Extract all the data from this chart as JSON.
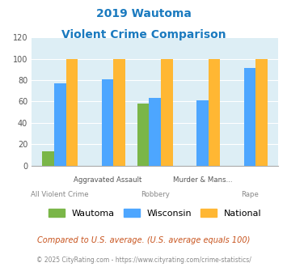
{
  "title_line1": "2019 Wautoma",
  "title_line2": "Violent Crime Comparison",
  "title_color": "#1a7abf",
  "categories": [
    "All Violent Crime",
    "Aggravated Assault",
    "Robbery",
    "Murder & Mans...",
    "Rape"
  ],
  "row1_labels": [
    "Aggravated Assault",
    "Murder & Mans..."
  ],
  "row1_indices": [
    1,
    3
  ],
  "row2_labels": [
    "All Violent Crime",
    "Robbery",
    "Rape"
  ],
  "row2_indices": [
    0,
    2,
    4
  ],
  "wautoma": [
    13,
    0,
    58,
    0,
    0
  ],
  "wisconsin": [
    77,
    81,
    63,
    61,
    91
  ],
  "national": [
    100,
    100,
    100,
    100,
    100
  ],
  "wautoma_color": "#7ab648",
  "wisconsin_color": "#4da6ff",
  "national_color": "#ffb733",
  "ylim": [
    0,
    120
  ],
  "yticks": [
    0,
    20,
    40,
    60,
    80,
    100,
    120
  ],
  "bg_color": "#ddeef5",
  "fig_bg": "#ffffff",
  "footnote1": "Compared to U.S. average. (U.S. average equals 100)",
  "footnote2": "© 2025 CityRating.com - https://www.cityrating.com/crime-statistics/",
  "footnote1_color": "#c8541e",
  "footnote2_color": "#888888",
  "legend_labels": [
    "Wautoma",
    "Wisconsin",
    "National"
  ],
  "bar_width": 0.25
}
